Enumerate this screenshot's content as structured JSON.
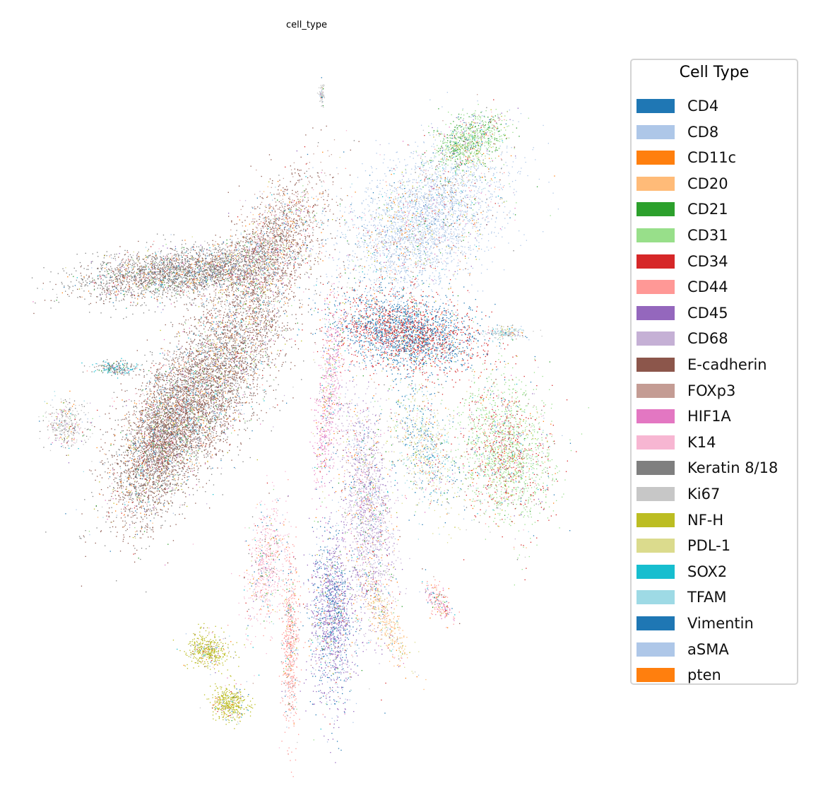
{
  "chart_data": {
    "type": "scatter",
    "title": "cell_type",
    "xlabel": "",
    "ylabel": "",
    "axes_visible": false,
    "grid": false,
    "legend": {
      "title": "Cell Type",
      "placement": "right-outside",
      "entries": [
        {
          "label": "CD4",
          "color": "#1f77b4"
        },
        {
          "label": "CD8",
          "color": "#aec7e8"
        },
        {
          "label": "CD11c",
          "color": "#ff7f0e"
        },
        {
          "label": "CD20",
          "color": "#ffbb78"
        },
        {
          "label": "CD21",
          "color": "#2ca02c"
        },
        {
          "label": "CD31",
          "color": "#98df8a"
        },
        {
          "label": "CD34",
          "color": "#d62728"
        },
        {
          "label": "CD44",
          "color": "#ff9896"
        },
        {
          "label": "CD45",
          "color": "#9467bd"
        },
        {
          "label": "CD68",
          "color": "#c5b0d5"
        },
        {
          "label": "E-cadherin",
          "color": "#8c564b"
        },
        {
          "label": "FOXp3",
          "color": "#c49c94"
        },
        {
          "label": "HIF1A",
          "color": "#e377c2"
        },
        {
          "label": "K14",
          "color": "#f7b6d2"
        },
        {
          "label": "Keratin 8/18",
          "color": "#7f7f7f"
        },
        {
          "label": "Ki67",
          "color": "#c7c7c7"
        },
        {
          "label": "NF-H",
          "color": "#bcbd22"
        },
        {
          "label": "PDL-1",
          "color": "#dbdb8d"
        },
        {
          "label": "SOX2",
          "color": "#17becf"
        },
        {
          "label": "TFAM",
          "color": "#9edae5"
        },
        {
          "label": "Vimentin",
          "color": "#1f77b4"
        },
        {
          "label": "aSMA",
          "color": "#aec7e8"
        },
        {
          "label": "pten",
          "color": "#ff7f0e"
        }
      ]
    }
  }
}
